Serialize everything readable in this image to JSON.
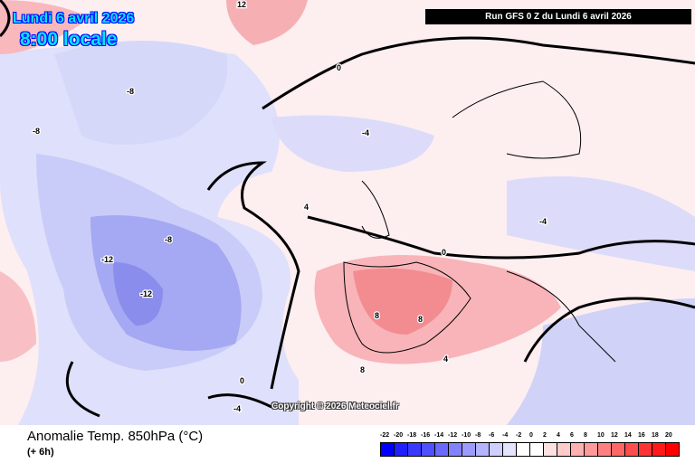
{
  "header": {
    "date": "Lundi 6 avril 2026",
    "time": "8:00 locale",
    "run": "Run GFS 0 Z du Lundi 6 avril 2026"
  },
  "footer": {
    "title": "Anomalie Temp. 850hPa (°C)",
    "lead": "(+ 6h)",
    "copyright": "Copyright © 2026 Meteociel.fr"
  },
  "legend": {
    "labels": [
      "-22",
      "-20",
      "-18",
      "-16",
      "-14",
      "-12",
      "-10",
      "-8",
      "-6",
      "-4",
      "-2",
      "0",
      "2",
      "4",
      "6",
      "8",
      "10",
      "12",
      "14",
      "16",
      "18",
      "20"
    ],
    "colors": [
      "#0000ff",
      "#1f1fff",
      "#3a3aff",
      "#5050ff",
      "#6a6aff",
      "#8282ff",
      "#9c9cff",
      "#b4b4ff",
      "#cfcfff",
      "#e4e4ff",
      "#ffffff",
      "#ffffff",
      "#ffe0e0",
      "#ffcaca",
      "#ffb0b0",
      "#ff9a9a",
      "#ff8080",
      "#ff6666",
      "#ff4c4c",
      "#ff3333",
      "#ff1a1a",
      "#ff0000"
    ]
  },
  "map_labels": [
    "-12",
    "-12",
    "-8",
    "-8",
    "-8",
    "-4",
    "-4",
    "-4",
    "0",
    "0",
    "0",
    "4",
    "4",
    "8",
    "8",
    "8",
    "12"
  ]
}
